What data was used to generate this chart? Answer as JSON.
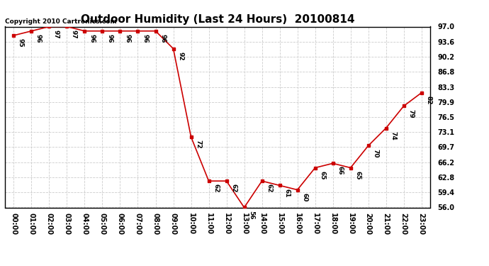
{
  "title": "Outdoor Humidity (Last 24 Hours)  20100814",
  "copyright": "Copyright 2010 Cartronics.com",
  "x_labels": [
    "00:00",
    "01:00",
    "02:00",
    "03:00",
    "04:00",
    "05:00",
    "06:00",
    "07:00",
    "08:00",
    "09:00",
    "10:00",
    "11:00",
    "12:00",
    "13:00",
    "14:00",
    "15:00",
    "16:00",
    "17:00",
    "18:00",
    "19:00",
    "20:00",
    "21:00",
    "22:00",
    "23:00"
  ],
  "y_values": [
    95,
    96,
    97,
    97,
    96,
    96,
    96,
    96,
    96,
    92,
    72,
    62,
    62,
    56,
    62,
    61,
    60,
    65,
    66,
    65,
    70,
    74,
    79,
    82
  ],
  "ylim_min": 56.0,
  "ylim_max": 97.0,
  "ytick_labels": [
    "56.0",
    "59.4",
    "62.8",
    "66.2",
    "69.7",
    "73.1",
    "76.5",
    "79.9",
    "83.3",
    "86.8",
    "90.2",
    "93.6",
    "97.0"
  ],
  "ytick_vals": [
    56.0,
    59.4,
    62.8,
    66.2,
    69.7,
    73.1,
    76.5,
    79.9,
    83.3,
    86.8,
    90.2,
    93.6,
    97.0
  ],
  "line_color": "#cc0000",
  "marker": "s",
  "marker_color": "#cc0000",
  "marker_size": 3,
  "bg_color": "#ffffff",
  "grid_color": "#cccccc",
  "title_fontsize": 11,
  "label_fontsize": 7,
  "annot_fontsize": 6.5,
  "copyright_fontsize": 6.5
}
